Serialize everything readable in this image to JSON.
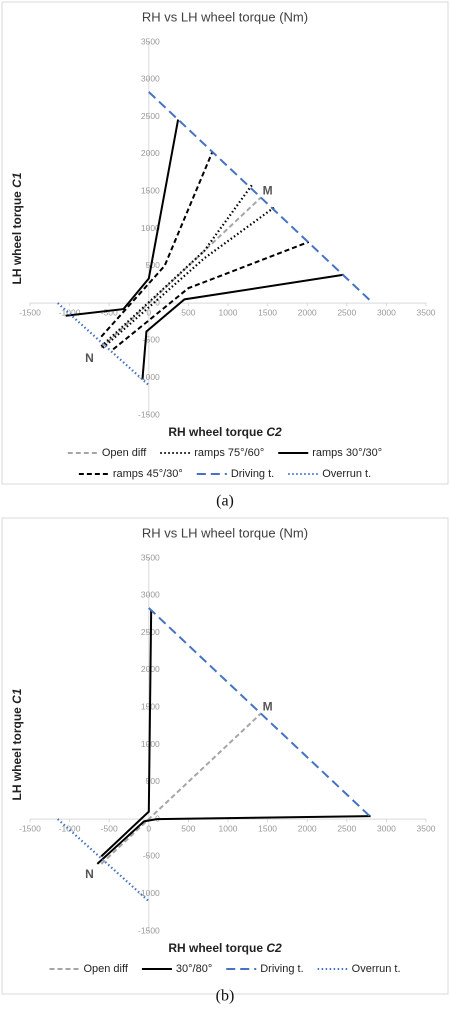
{
  "chart_data": [
    {
      "type": "line",
      "title": "RH vs LH wheel torque (Nm)",
      "x_label": "RH wheel torque",
      "x_label_var": "C2",
      "y_label": "LH wheel torque",
      "y_label_var": "C1",
      "xlim": [
        -1500,
        3500
      ],
      "xticks": [
        -1500,
        -1000,
        -500,
        0,
        500,
        1000,
        1500,
        2000,
        2500,
        3000,
        3500
      ],
      "ylim": [
        -1500,
        3500
      ],
      "yticks": [
        -1500,
        -1000,
        -500,
        0,
        500,
        1000,
        1500,
        2000,
        2500,
        3000,
        3500
      ],
      "legend_columns": 3,
      "series": [
        {
          "name": "Open diff",
          "color": "#a6a6a6",
          "style": "dashed",
          "x": [
            -600,
            1420
          ],
          "values": [
            -600,
            1420
          ]
        },
        {
          "name": "ramps 75°/60°",
          "color": "#000000",
          "style": "dotted",
          "x": [
            -600,
            700,
            1300,
            null,
            -580,
            700,
            1580
          ],
          "values": [
            -580,
            700,
            1580,
            null,
            -600,
            600,
            1280
          ]
        },
        {
          "name": "ramps 30°/30°",
          "color": "#000000",
          "style": "solid",
          "x": [
            -1050,
            -320,
            0,
            370,
            null,
            -80,
            -30,
            450,
            2460
          ],
          "values": [
            -170,
            -80,
            330,
            2460,
            null,
            -1020,
            -380,
            50,
            380
          ]
        },
        {
          "name": "ramps 45°/30°",
          "color": "#000000",
          "style": "dashed",
          "x": [
            -600,
            200,
            800,
            null,
            -450,
            500,
            2020
          ],
          "values": [
            -450,
            500,
            2020,
            null,
            -620,
            200,
            820
          ]
        },
        {
          "name": "Driving t.",
          "color": "#4472c4",
          "style": "longdash",
          "x": [
            0,
            2830
          ],
          "values": [
            2830,
            0
          ]
        },
        {
          "name": "Overrun t.",
          "color": "#4472c4",
          "style": "dotted",
          "x": [
            -1150,
            0
          ],
          "values": [
            0,
            -1100
          ]
        }
      ],
      "annotations": [
        {
          "text": "M",
          "x": 1500,
          "y": 1500
        },
        {
          "text": "N",
          "x": -750,
          "y": -750
        }
      ],
      "caption": "(a)"
    },
    {
      "type": "line",
      "title": "RH vs LH wheel torque (Nm)",
      "x_label": "RH wheel torque",
      "x_label_var": "C2",
      "y_label": "LH wheel torque",
      "y_label_var": "C1",
      "xlim": [
        -1500,
        3500
      ],
      "xticks": [
        -1500,
        -1000,
        -500,
        0,
        500,
        1000,
        1500,
        2000,
        2500,
        3000,
        3500
      ],
      "ylim": [
        -1500,
        3500
      ],
      "yticks": [
        -1500,
        -1000,
        -500,
        0,
        500,
        1000,
        1500,
        2000,
        2500,
        3000,
        3500
      ],
      "legend_columns": 4,
      "series": [
        {
          "name": "Open diff",
          "color": "#a6a6a6",
          "style": "dashed",
          "x": [
            -600,
            1420
          ],
          "values": [
            -600,
            1420
          ]
        },
        {
          "name": "30°/80°",
          "color": "#000000",
          "style": "solid",
          "x": [
            -600,
            -50,
            0,
            30,
            null,
            -650,
            -60,
            100,
            2800
          ],
          "values": [
            -500,
            50,
            100,
            2800,
            null,
            -600,
            -30,
            0,
            40
          ]
        },
        {
          "name": "Driving t.",
          "color": "#4472c4",
          "style": "longdash",
          "x": [
            0,
            2830
          ],
          "values": [
            2830,
            0
          ]
        },
        {
          "name": "Overrun t.",
          "color": "#4472c4",
          "style": "dotted",
          "x": [
            -1150,
            0
          ],
          "values": [
            0,
            -1100
          ]
        }
      ],
      "annotations": [
        {
          "text": "M",
          "x": 1500,
          "y": 1500
        },
        {
          "text": "N",
          "x": -750,
          "y": -750
        }
      ],
      "caption": "(b)"
    }
  ]
}
